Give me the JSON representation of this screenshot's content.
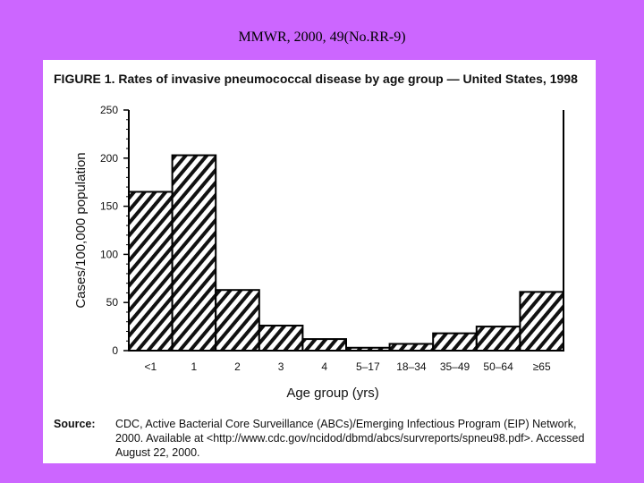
{
  "header": {
    "citation": "MMWR, 2000, 49(No.RR-9)"
  },
  "figure": {
    "title": "FIGURE 1. Rates of invasive pneumococcal disease by age group — United States, 1998",
    "source_label": "Source:",
    "source_text": "CDC, Active Bacterial Core Surveillance (ABCs)/Emerging Infectious Program (EIP) Network, 2000. Available at <http://www.cdc.gov/ncidod/dbmd/abcs/survreports/spneu98.pdf>. Accessed August 22, 2000."
  },
  "chart_data": {
    "type": "bar",
    "title": "Rates of invasive pneumococcal disease by age group — United States, 1998",
    "xlabel": "Age group (yrs)",
    "ylabel": "Cases/100,000 population",
    "ylim": [
      0,
      250
    ],
    "yticks": [
      0,
      50,
      100,
      150,
      200,
      250
    ],
    "categories": [
      "<1",
      "1",
      "2",
      "3",
      "4",
      "5–17",
      "18–34",
      "35–49",
      "50–64",
      "≥65"
    ],
    "values": [
      165,
      203,
      63,
      26,
      12,
      3,
      7,
      18,
      25,
      61
    ],
    "fill": "diagonal hatch",
    "grid": false
  }
}
